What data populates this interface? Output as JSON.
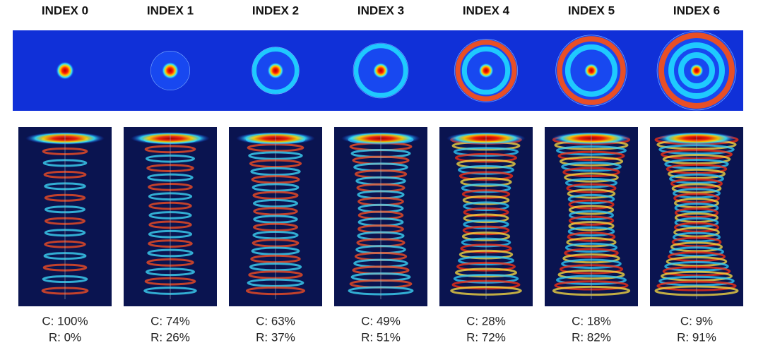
{
  "panels": [
    {
      "title": "INDEX 0",
      "c": "C: 100%",
      "r": "R: 0%"
    },
    {
      "title": "INDEX 1",
      "c": "C: 74%",
      "r": "R: 26%"
    },
    {
      "title": "INDEX 2",
      "c": "C: 63%",
      "r": "R: 37%"
    },
    {
      "title": "INDEX 3",
      "c": "C: 49%",
      "r": "R: 51%"
    },
    {
      "title": "INDEX 4",
      "c": "C: 28%",
      "r": "R: 72%"
    },
    {
      "title": "INDEX 5",
      "c": "C: 18%",
      "r": "R: 82%"
    },
    {
      "title": "INDEX 6",
      "c": "C: 9%",
      "r": "R: 91%"
    }
  ]
}
